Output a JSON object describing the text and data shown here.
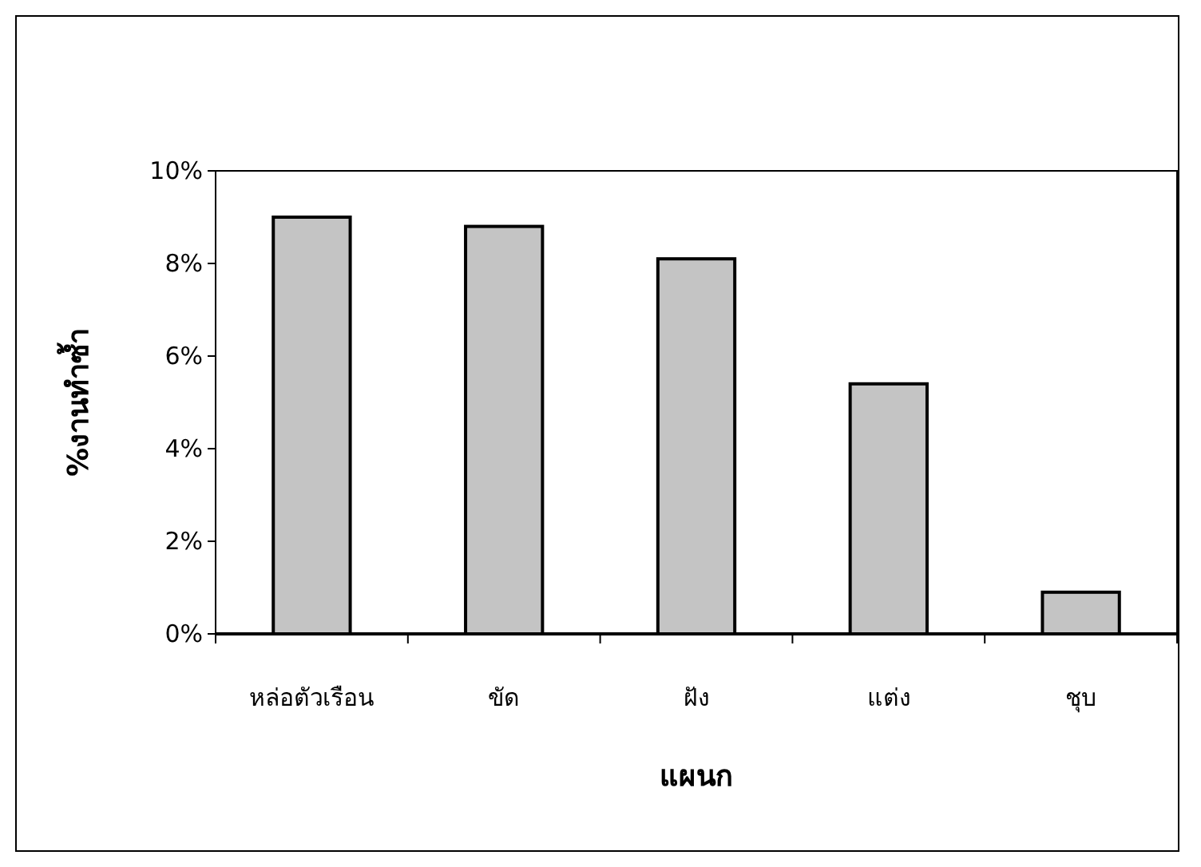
{
  "chart_data": {
    "type": "bar",
    "xlabel": "แผนก",
    "ylabel": "%งานทำซ้ำ",
    "categories": [
      "หล่อตัวเรือน",
      "ขัด",
      "ฝัง",
      "แต่ง",
      "ชุบ"
    ],
    "values": [
      9.0,
      8.8,
      8.1,
      5.4,
      0.9
    ],
    "color": "#c4c4c4",
    "ylim": [
      0,
      10
    ],
    "yticks": [
      {
        "value": 0,
        "label": "0%"
      },
      {
        "value": 2,
        "label": "2%"
      },
      {
        "value": 4,
        "label": "4%"
      },
      {
        "value": 6,
        "label": "6%"
      },
      {
        "value": 8,
        "label": "8%"
      },
      {
        "value": 10,
        "label": "10%"
      }
    ]
  }
}
